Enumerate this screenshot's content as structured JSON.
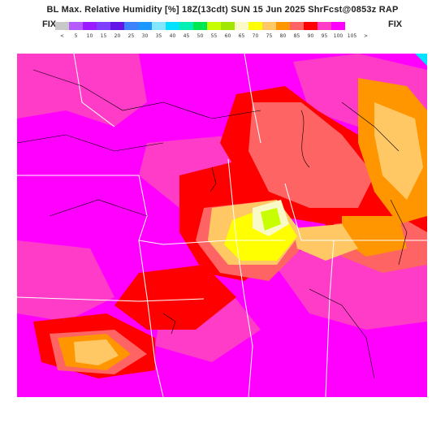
{
  "header": {
    "title": "BL Max. Relative Humidity  [%]  18Z(13cdt) SUN 15 Jun 2025  ShrFcst@0853z RAP",
    "fix_left": "FIX",
    "fix_right": "FIX"
  },
  "legend": {
    "colors": [
      "#c8c8c8",
      "#b45aff",
      "#9b1bff",
      "#8040ff",
      "#6414e6",
      "#3c82ff",
      "#1e96ff",
      "#82e6ff",
      "#00e1ff",
      "#00f0b4",
      "#00e650",
      "#c8ff00",
      "#a0e600",
      "#fafac8",
      "#ffff00",
      "#ffc864",
      "#ff9600",
      "#ff6464",
      "#ff0000",
      "#ff3cc8",
      "#ff00ff"
    ],
    "labels": [
      "<",
      "5",
      "10",
      "15",
      "20",
      "25",
      "30",
      "35",
      "40",
      "45",
      "50",
      "55",
      "60",
      "65",
      "70",
      "75",
      "80",
      "85",
      "90",
      "95",
      "100",
      "105",
      ">"
    ]
  }
}
